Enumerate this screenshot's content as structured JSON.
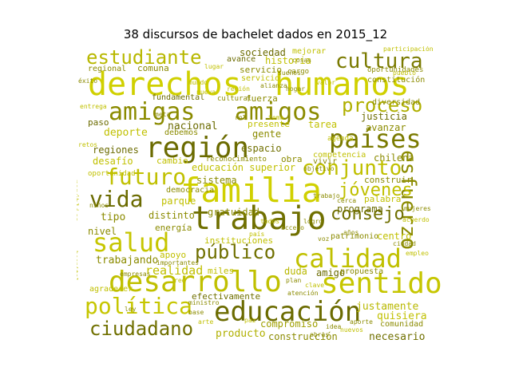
{
  "title": "38 discursos de bachelet dados en 2015_12",
  "palette": {
    "bright": "#cccc00",
    "olive": "#8b8b00",
    "dark": "#6b6b00",
    "mid": "#a0a000"
  },
  "words": [
    {
      "text": "derechos",
      "color": "#d0d000"
    },
    {
      "text": "humanos",
      "color": "#d0d000"
    },
    {
      "text": "familia",
      "color": "#d0d000"
    },
    {
      "text": "trabajo",
      "color": "#707000"
    },
    {
      "text": "educación",
      "color": "#6b6b00"
    },
    {
      "text": "desarrollo",
      "color": "#c0c000"
    },
    {
      "text": "sentido",
      "color": "#c6c600"
    },
    {
      "text": "región",
      "color": "#6b6b00"
    },
    {
      "text": "calidad",
      "color": "#c0c000"
    },
    {
      "text": "salud",
      "color": "#c6c600"
    },
    {
      "text": "amigas",
      "color": "#8b8b00"
    },
    {
      "text": "amigos",
      "color": "#8b8b00"
    },
    {
      "text": "política",
      "color": "#c6c600"
    },
    {
      "text": "esfuerzo",
      "color": "#8b8b00"
    },
    {
      "text": "países",
      "color": "#7a7a00"
    },
    {
      "text": "cultura",
      "color": "#7a7a00"
    },
    {
      "text": "proceso",
      "color": "#b0b000"
    },
    {
      "text": "futuro",
      "color": "#c0c000"
    },
    {
      "text": "conjunto",
      "color": "#c0c000"
    },
    {
      "text": "vida",
      "color": "#6b6b00"
    },
    {
      "text": "consejo",
      "color": "#707000"
    },
    {
      "text": "público",
      "color": "#707000"
    },
    {
      "text": "ciudadano",
      "color": "#707000"
    },
    {
      "text": "estudiante",
      "color": "#b8b800"
    },
    {
      "text": "jóvenes",
      "color": "#c0c000"
    },
    {
      "text": "trabajando",
      "color": "#8b8b00"
    },
    {
      "text": "realidad",
      "color": "#c0c000"
    },
    {
      "text": "nacional",
      "color": "#6b6b00"
    },
    {
      "text": "justicia",
      "color": "#6b6b00"
    },
    {
      "text": "sistema",
      "color": "#8b8b00"
    },
    {
      "text": "democracia",
      "color": "#8b8b00"
    },
    {
      "text": "gratuidad",
      "color": "#8b8b00"
    },
    {
      "text": "instituciones",
      "color": "#c0c000"
    },
    {
      "text": "compromiso",
      "color": "#a0a000"
    },
    {
      "text": "producto",
      "color": "#b0b000"
    },
    {
      "text": "construcción",
      "color": "#8b8b00"
    },
    {
      "text": "necesario",
      "color": "#707000"
    },
    {
      "text": "justamente",
      "color": "#b8b800"
    },
    {
      "text": "historia",
      "color": "#c0c000"
    },
    {
      "text": "sociedad",
      "color": "#6b6b00"
    },
    {
      "text": "gente",
      "color": "#8b8b00"
    },
    {
      "text": "espacio",
      "color": "#707000"
    },
    {
      "text": "educación superior",
      "color": "#c0c000"
    },
    {
      "text": "deporte",
      "color": "#c0c000"
    },
    {
      "text": "regiones",
      "color": "#6b6b00"
    },
    {
      "text": "desafío",
      "color": "#c0c000"
    },
    {
      "text": "comuna",
      "color": "#8b8b00"
    },
    {
      "text": "regional",
      "color": "#8b8b00"
    },
    {
      "text": "avance",
      "color": "#6b6b00"
    },
    {
      "text": "servicio",
      "color": "#8b8b00"
    },
    {
      "text": "fuerza",
      "color": "#8b8b00"
    },
    {
      "text": "fundamental",
      "color": "#6b6b00"
    },
    {
      "text": "presente",
      "color": "#c0c000"
    },
    {
      "text": "tarea",
      "color": "#c0c000"
    },
    {
      "text": "avanzar",
      "color": "#8b8b00"
    },
    {
      "text": "chilena",
      "color": "#8b8b00"
    },
    {
      "text": "construir",
      "color": "#8b8b00"
    },
    {
      "text": "programa",
      "color": "#6b6b00"
    },
    {
      "text": "palabra",
      "color": "#c0c000"
    },
    {
      "text": "centro",
      "color": "#c0c000"
    },
    {
      "text": "quisiera",
      "color": "#c0c000"
    },
    {
      "text": "comunidad",
      "color": "#8b8b00"
    },
    {
      "text": "efectivamente",
      "color": "#707000"
    },
    {
      "text": "miles",
      "color": "#c0c000"
    },
    {
      "text": "duda",
      "color": "#b8b800"
    },
    {
      "text": "amigo",
      "color": "#6b6b00"
    },
    {
      "text": "propuesta",
      "color": "#8b8b00"
    },
    {
      "text": "tipo",
      "color": "#8b8b00"
    },
    {
      "text": "nivel",
      "color": "#8b8b00"
    },
    {
      "text": "distinto",
      "color": "#8b8b00"
    },
    {
      "text": "energía",
      "color": "#8b8b00"
    },
    {
      "text": "parque",
      "color": "#c0c000"
    },
    {
      "text": "apoyo",
      "color": "#c0c000"
    },
    {
      "text": "paso",
      "color": "#6b6b00"
    },
    {
      "text": "cambio",
      "color": "#c0c000"
    },
    {
      "text": "oportunidades",
      "color": "#8b8b00"
    },
    {
      "text": "mejorar",
      "color": "#c0c000"
    },
    {
      "text": "patrimonio",
      "color": "#8b8b00"
    },
    {
      "text": "agradecer",
      "color": "#c0c000"
    },
    {
      "text": "debemos",
      "color": "#8b8b00"
    },
    {
      "text": "cargo",
      "color": "#8b8b00"
    },
    {
      "text": "entrega",
      "color": "#c0c000"
    },
    {
      "text": "república",
      "color": "#c0c000"
    },
    {
      "text": "oportunidad",
      "color": "#c0c000"
    },
    {
      "text": "cultural",
      "color": "#8b8b00"
    },
    {
      "text": "vivir",
      "color": "#8b8b00"
    },
    {
      "text": "participación",
      "color": "#c0c000"
    },
    {
      "text": "constitución",
      "color": "#8b8b00"
    },
    {
      "text": "importantes",
      "color": "#8b8b00"
    },
    {
      "text": "agenda",
      "color": "#c0c000"
    },
    {
      "text": "competencia",
      "color": "#c0c000"
    },
    {
      "text": "obra",
      "color": "#8b8b00"
    },
    {
      "text": "reconocimiento",
      "color": "#8b8b00"
    },
    {
      "text": "objetivo",
      "color": "#8b8b00"
    },
    {
      "text": "diversidad",
      "color": "#8b8b00"
    },
    {
      "text": "servicio",
      "color": "#c0c000"
    },
    {
      "text": "cosas",
      "color": "#8b8b00"
    },
    {
      "text": "empresas",
      "color": "#8b8b00"
    },
    {
      "text": "rol",
      "color": "#8b8b00"
    },
    {
      "text": "lugar",
      "color": "#c0c000"
    },
    {
      "text": "valor",
      "color": "#c0c000"
    },
    {
      "text": "hogar",
      "color": "#8b8b00"
    },
    {
      "text": "mundo",
      "color": "#c0c000"
    },
    {
      "text": "cerca",
      "color": "#8b8b00"
    },
    {
      "text": "logro",
      "color": "#8b8b00"
    },
    {
      "text": "nueva",
      "color": "#c0c000"
    },
    {
      "text": "meta",
      "color": "#8b8b00"
    },
    {
      "text": "acceso",
      "color": "#8b8b00"
    },
    {
      "text": "aporte",
      "color": "#8b8b00"
    },
    {
      "text": "todos",
      "color": "#c0c000"
    },
    {
      "text": "años",
      "color": "#8b8b00"
    },
    {
      "text": "país",
      "color": "#c0c000"
    },
    {
      "text": "voz",
      "color": "#8b8b00"
    },
    {
      "text": "red",
      "color": "#c0c000"
    },
    {
      "text": "plan",
      "color": "#8b8b00"
    },
    {
      "text": "clave",
      "color": "#c0c000"
    },
    {
      "text": "base",
      "color": "#8b8b00"
    },
    {
      "text": "paz",
      "color": "#c0c000"
    },
    {
      "text": "ley",
      "color": "#8b8b00"
    },
    {
      "text": "arte",
      "color": "#c0c000"
    },
    {
      "text": "idea",
      "color": "#8b8b00"
    },
    {
      "text": "obras",
      "color": "#8b8b00"
    },
    {
      "text": "nuevos",
      "color": "#c0c000"
    },
    {
      "text": "niños",
      "color": "#8b8b00"
    },
    {
      "text": "retos",
      "color": "#c0c000"
    },
    {
      "text": "éxito",
      "color": "#8b8b00"
    },
    {
      "text": "tema",
      "color": "#c0c000"
    },
    {
      "text": "sueños",
      "color": "#8b8b00"
    },
    {
      "text": "región",
      "color": "#c0c000"
    },
    {
      "text": "alianza",
      "color": "#8b8b00"
    },
    {
      "text": "pueblo",
      "color": "#c0c000"
    },
    {
      "text": "mujeres",
      "color": "#8b8b00"
    },
    {
      "text": "acuerdo",
      "color": "#c0c000"
    },
    {
      "text": "ciudad",
      "color": "#8b8b00"
    },
    {
      "text": "empleo",
      "color": "#c0c000"
    },
    {
      "text": "trabajo",
      "color": "#8b8b00"
    },
    {
      "text": "ministro",
      "color": "#8b8b00"
    },
    {
      "text": "atención",
      "color": "#8b8b00"
    },
    {
      "text": "hospital",
      "color": "#c0c000"
    }
  ]
}
